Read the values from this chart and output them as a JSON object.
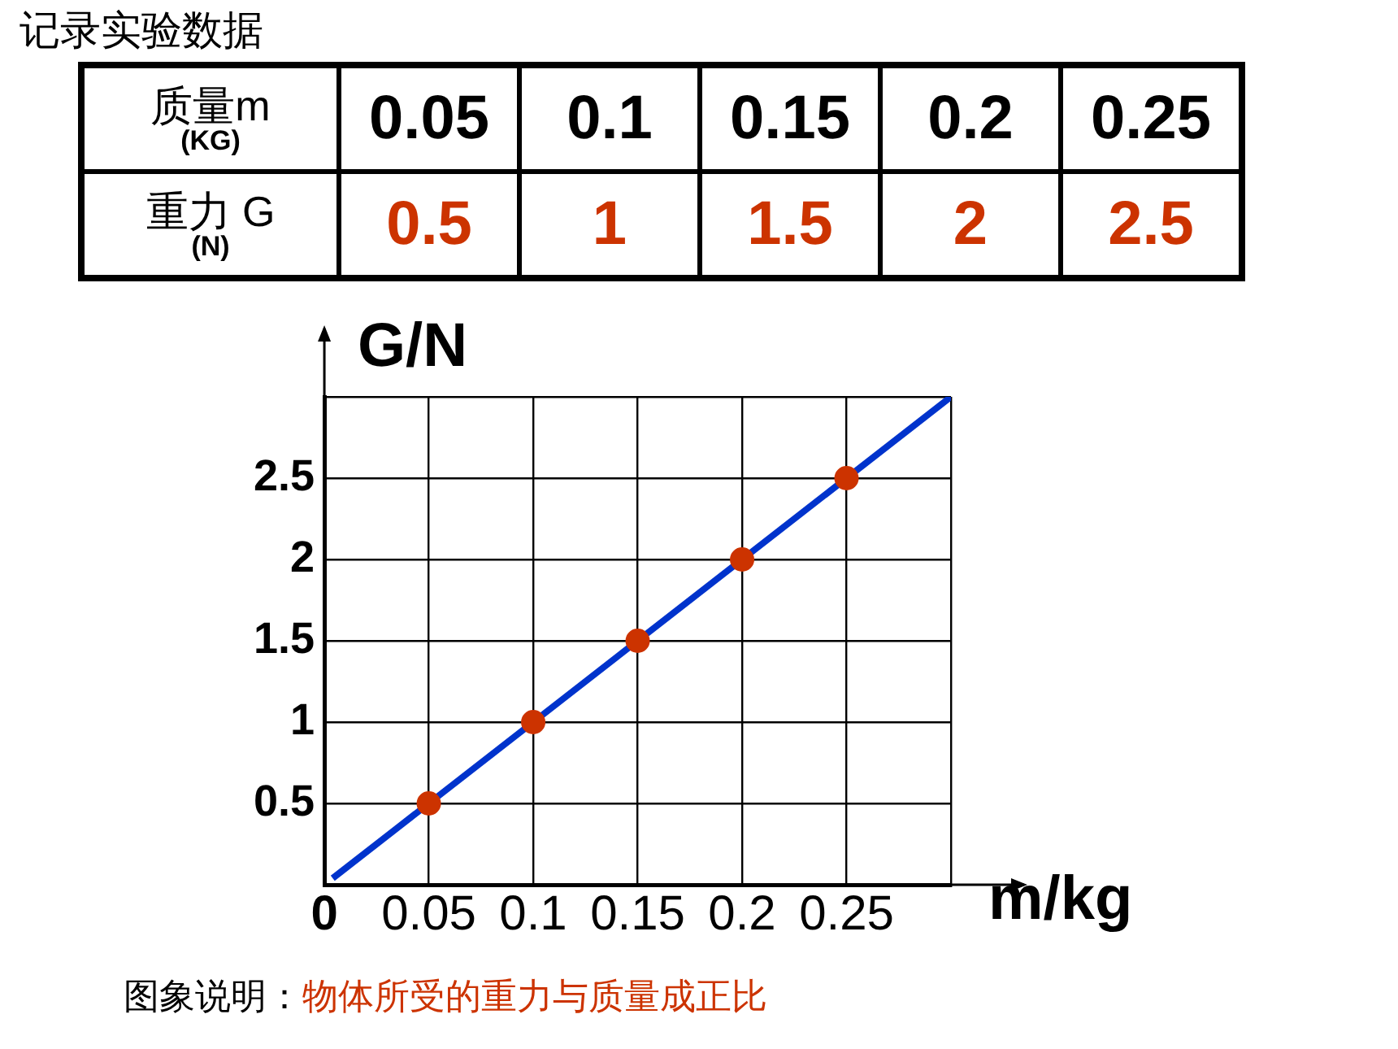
{
  "chart_data": {
    "type": "scatter",
    "title": "记录实验数据",
    "xlabel": "m/kg",
    "ylabel": "G/N",
    "annotations": [
      "质量m",
      "(KG)",
      "重力 G",
      "(N)",
      "0.05",
      "0.1",
      "0.15",
      "0.2",
      "0.25",
      "0.5",
      "1",
      "1.5",
      "2",
      "2.5",
      "图象说明：",
      "物体所受的重力与质量成正比"
    ],
    "xlim": [
      0,
      0.3
    ],
    "ylim": [
      0,
      3
    ],
    "xticks": [
      0,
      0.05,
      0.1,
      0.15,
      0.2,
      0.25,
      {
        "value": 0.3,
        "label": null
      }
    ],
    "yticks": [
      {
        "value": 0,
        "label": null
      },
      0.5,
      1,
      1.5,
      2,
      2.5,
      {
        "value": 3,
        "label": null
      }
    ],
    "grid": true,
    "marker": "circle",
    "series": [
      {
        "type": "scatter",
        "color": "#cc3300",
        "x": [
          0.05,
          0.1,
          0.15,
          0.2,
          0.25
        ],
        "values": [
          0.5,
          1,
          1.5,
          2,
          2.5
        ]
      },
      {
        "type": "line",
        "color": "#0033cc",
        "marker": "none",
        "x": [
          0.004,
          0.3
        ],
        "values": [
          0.04,
          3
        ]
      }
    ]
  }
}
